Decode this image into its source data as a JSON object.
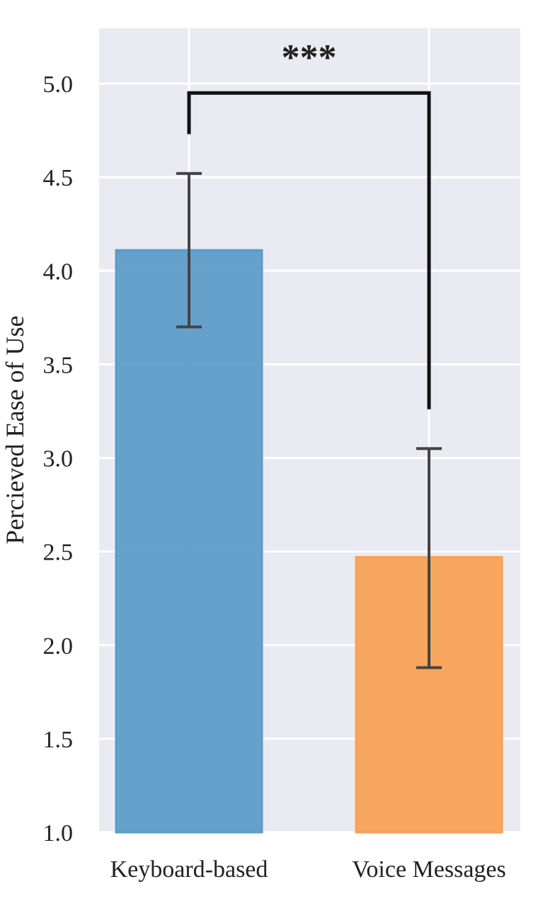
{
  "chart_data": {
    "type": "bar",
    "categories": [
      "Keyboard-based",
      "Voice Messages"
    ],
    "values": [
      4.11,
      2.47
    ],
    "error_bars": [
      {
        "low": 3.7,
        "high": 4.52
      },
      {
        "low": 1.88,
        "high": 3.05
      }
    ],
    "bar_colors": [
      "#5b9bc9",
      "#f8a055"
    ],
    "error_bar_color": "#444444",
    "ylabel": "Percieved Ease of Use",
    "xlabel": "",
    "ylim": [
      1.0,
      5.3
    ],
    "yticks": [
      "1.0",
      "1.5",
      "2.0",
      "2.5",
      "3.0",
      "3.5",
      "4.0",
      "4.5",
      "5.0"
    ],
    "ytick_values": [
      1.0,
      1.5,
      2.0,
      2.5,
      3.0,
      3.5,
      4.0,
      4.5,
      5.0
    ],
    "grid": true,
    "background": "#eaeaf2",
    "significance": {
      "label": "***",
      "bracket_y": 4.95,
      "left_end": 4.73,
      "right_end": 3.26
    }
  }
}
